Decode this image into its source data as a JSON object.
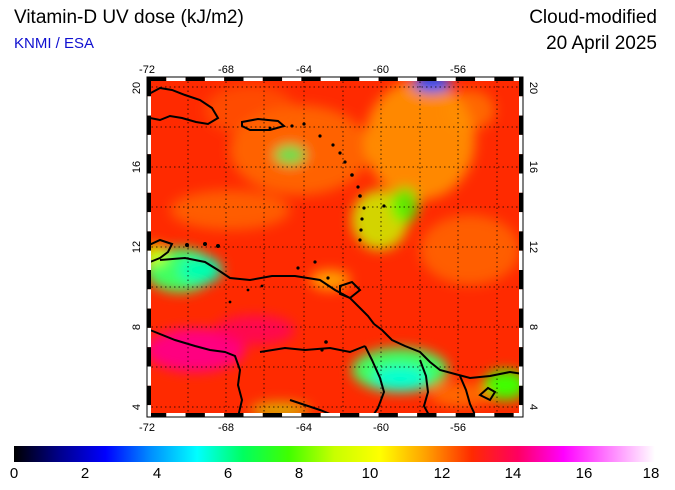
{
  "header": {
    "title": "Vitamin-D UV dose (kJ/m2)",
    "credit": "KNMI / ESA",
    "mode": "Cloud-modified",
    "date": "20 April 2025"
  },
  "map": {
    "region": "Caribbean / northern South America",
    "lon_range": [
      -72,
      -52
    ],
    "lat_range": [
      3.5,
      20.5
    ],
    "lon_ticks": [
      "-72",
      "-68",
      "-64",
      "-60",
      "-56"
    ],
    "lat_ticks": [
      "20",
      "16",
      "12",
      "8",
      "4"
    ],
    "gridlines": "dotted every 2 degrees",
    "field_dominant_color": "#ff2a00"
  },
  "colorbar": {
    "min": 0,
    "max": 18,
    "tick_labels": [
      "0",
      "2",
      "4",
      "6",
      "8",
      "10",
      "12",
      "14",
      "16",
      "18"
    ],
    "colors": [
      "#000000",
      "#00008c",
      "#0000ff",
      "#0090ff",
      "#00ffff",
      "#00ff60",
      "#40ff00",
      "#c8ff00",
      "#ffff00",
      "#ffa000",
      "#ff2a00",
      "#ff0060",
      "#ff00ff",
      "#ff80ff",
      "#ffffff"
    ]
  }
}
